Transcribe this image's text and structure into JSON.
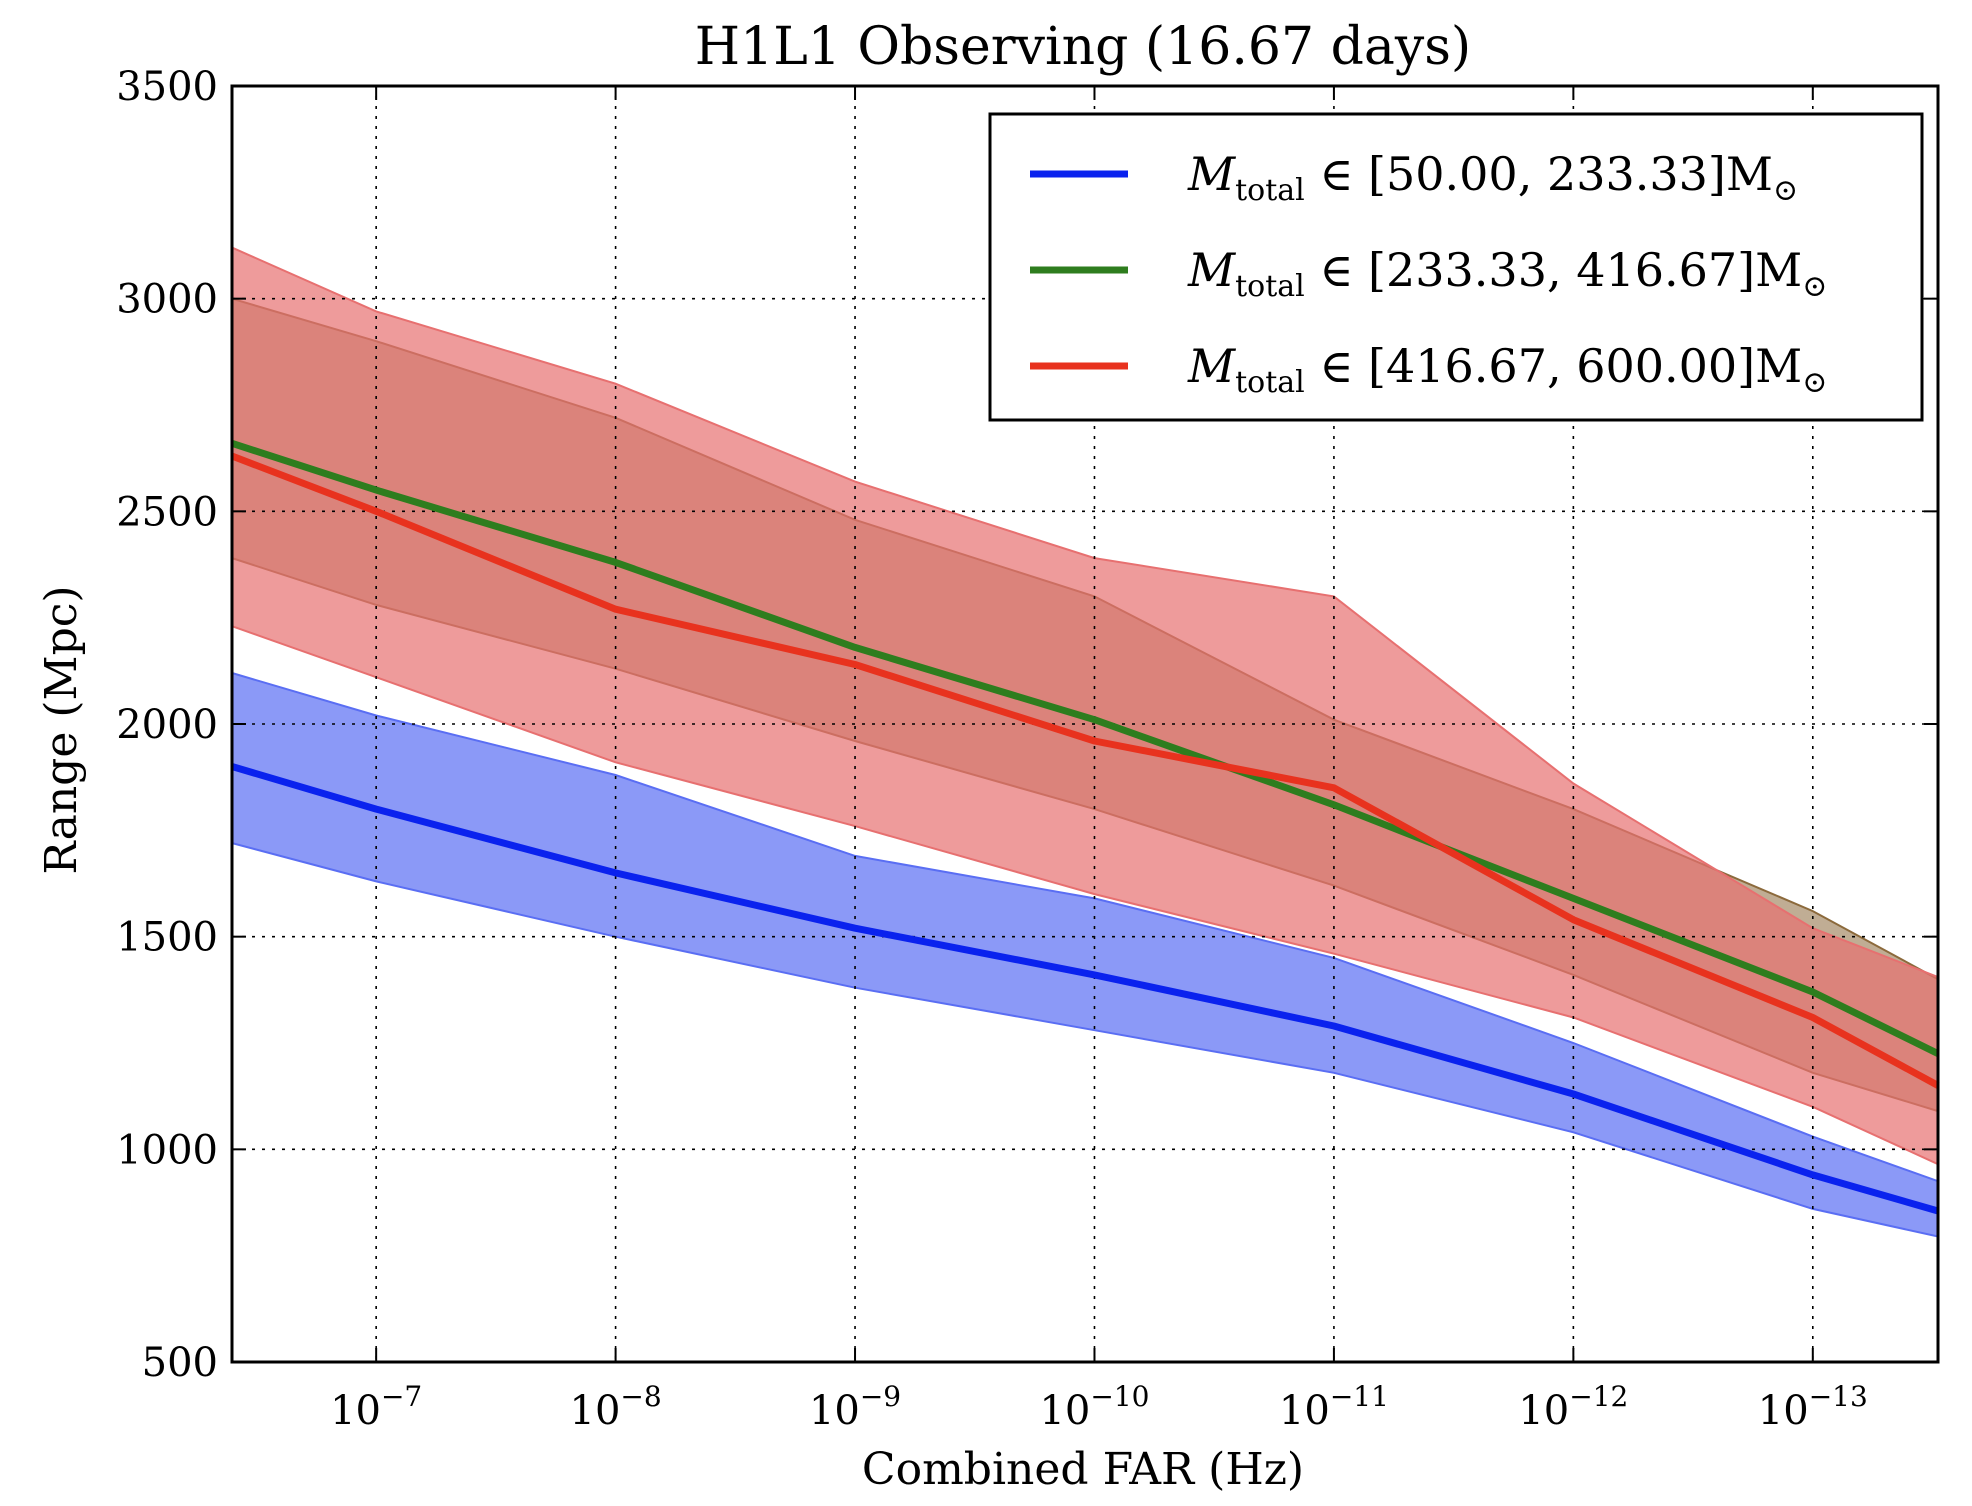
{
  "chart_data": {
    "type": "area",
    "title": "H1L1 Observing (16.67 days)",
    "xlabel": "Combined FAR (Hz)",
    "ylabel": "Range (Mpc)",
    "x_scale": "log",
    "x_reversed": true,
    "xlim": [
      4e-07,
      3e-14
    ],
    "ylim": [
      500,
      3500
    ],
    "x_ticks": [
      {
        "value": 1e-07,
        "base": "10",
        "exp": "−7"
      },
      {
        "value": 1e-08,
        "base": "10",
        "exp": "−8"
      },
      {
        "value": 1e-09,
        "base": "10",
        "exp": "−9"
      },
      {
        "value": 1e-10,
        "base": "10",
        "exp": "−10"
      },
      {
        "value": 1e-11,
        "base": "10",
        "exp": "−11"
      },
      {
        "value": 1e-12,
        "base": "10",
        "exp": "−12"
      },
      {
        "value": 1e-13,
        "base": "10",
        "exp": "−13"
      }
    ],
    "y_ticks": [
      "500",
      "1000",
      "1500",
      "2000",
      "2500",
      "3000",
      "3500"
    ],
    "grid": true,
    "legend_position": "top-right",
    "x": [
      4e-07,
      1e-07,
      1e-08,
      1e-09,
      1e-10,
      1e-11,
      1e-12,
      1e-13,
      3e-14
    ],
    "series": [
      {
        "name": "[50.00, 233.33]",
        "legend_main": "M",
        "legend_sub": "total",
        "legend_range": " ∈ [50.00, 233.33]M",
        "legend_sun": "⊙",
        "color": "#0a22ee",
        "band_color": "#5a6ef3",
        "band_opacity": 0.7,
        "values": [
          1900,
          1800,
          1650,
          1520,
          1410,
          1290,
          1130,
          940,
          855
        ],
        "lower": [
          1720,
          1630,
          1500,
          1380,
          1280,
          1180,
          1040,
          860,
          795
        ],
        "upper": [
          2120,
          2020,
          1880,
          1690,
          1590,
          1450,
          1250,
          1030,
          925
        ]
      },
      {
        "name": "[233.33, 416.67]",
        "legend_main": "M",
        "legend_sub": "total",
        "legend_range": " ∈ [233.33, 416.67]M",
        "legend_sun": "⊙",
        "color": "#2e7d1e",
        "band_color": "#8c6a3c",
        "band_opacity": 0.55,
        "values": [
          2660,
          2550,
          2380,
          2180,
          2010,
          1810,
          1590,
          1370,
          1225
        ],
        "lower": [
          2390,
          2280,
          2130,
          1960,
          1800,
          1620,
          1410,
          1180,
          1090
        ],
        "upper": [
          3000,
          2900,
          2720,
          2480,
          2300,
          2010,
          1800,
          1560,
          1400
        ]
      },
      {
        "name": "[416.67, 600.00]",
        "legend_main": "M",
        "legend_sub": "total",
        "legend_range": " ∈ [416.67, 600.00]M",
        "legend_sun": "⊙",
        "color": "#e8321e",
        "band_color": "#e77070",
        "band_opacity": 0.7,
        "values": [
          2630,
          2500,
          2270,
          2140,
          1960,
          1850,
          1540,
          1310,
          1150
        ],
        "lower": [
          2230,
          2110,
          1910,
          1760,
          1600,
          1460,
          1310,
          1100,
          965
        ],
        "upper": [
          3120,
          2970,
          2800,
          2570,
          2390,
          2300,
          1860,
          1520,
          1405
        ]
      }
    ]
  }
}
